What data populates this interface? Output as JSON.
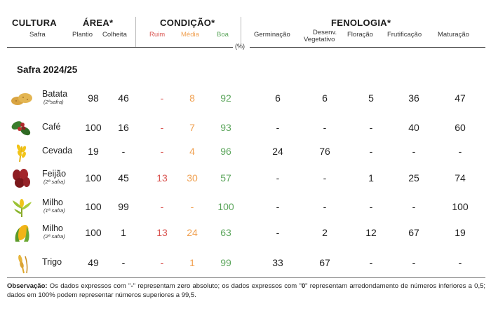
{
  "header": {
    "cultura": "CULTURA",
    "safra": "Safra",
    "area": "ÁREA*",
    "plantio": "Plantio",
    "colheita": "Colheita",
    "condicao": "CONDIÇÃO*",
    "ruim": "Ruim",
    "media": "Média",
    "boa": "Boa",
    "fenologia": "FENOLOGIA*",
    "germinacao": "Germinação",
    "desenv1": "Desenv.",
    "desenv2": "Vegetativo",
    "floracao": "Floração",
    "frutificacao": "Frutificação",
    "maturacao": "Maturação",
    "unit": "(%)"
  },
  "section_title": "Safra 2024/25",
  "colors": {
    "ruim": "#d9534f",
    "media": "#f0a050",
    "boa": "#5ba55b"
  },
  "rows": [
    {
      "name": "Batata",
      "sub": "(2ªsafra)",
      "icon": "potato-icon",
      "plantio": "98",
      "colheita": "46",
      "ruim": "-",
      "media": "8",
      "boa": "92",
      "germ": "6",
      "desenv": "6",
      "flor": "5",
      "frut": "36",
      "mat": "47"
    },
    {
      "name": "Café",
      "sub": "",
      "icon": "coffee-icon",
      "plantio": "100",
      "colheita": "16",
      "ruim": "-",
      "media": "7",
      "boa": "93",
      "germ": "-",
      "desenv": "-",
      "flor": "-",
      "frut": "40",
      "mat": "60"
    },
    {
      "name": "Cevada",
      "sub": "",
      "icon": "barley-icon",
      "plantio": "19",
      "colheita": "-",
      "ruim": "-",
      "media": "4",
      "boa": "96",
      "germ": "24",
      "desenv": "76",
      "flor": "-",
      "frut": "-",
      "mat": "-"
    },
    {
      "name": "Feijão",
      "sub": "(2ª safra)",
      "icon": "bean-icon",
      "plantio": "100",
      "colheita": "45",
      "ruim": "13",
      "media": "30",
      "boa": "57",
      "germ": "-",
      "desenv": "-",
      "flor": "1",
      "frut": "25",
      "mat": "74"
    },
    {
      "name": "Milho",
      "sub": "(1ª safra)",
      "icon": "corn-plant-icon",
      "plantio": "100",
      "colheita": "99",
      "ruim": "-",
      "media": "-",
      "boa": "100",
      "germ": "-",
      "desenv": "-",
      "flor": "-",
      "frut": "-",
      "mat": "100"
    },
    {
      "name": "Milho",
      "sub": "(2ª safra)",
      "icon": "corn-icon",
      "plantio": "100",
      "colheita": "1",
      "ruim": "13",
      "media": "24",
      "boa": "63",
      "germ": "-",
      "desenv": "2",
      "flor": "12",
      "frut": "67",
      "mat": "19"
    },
    {
      "name": "Trigo",
      "sub": "",
      "icon": "wheat-icon",
      "plantio": "49",
      "colheita": "-",
      "ruim": "-",
      "media": "1",
      "boa": "99",
      "germ": "33",
      "desenv": "67",
      "flor": "-",
      "frut": "-",
      "mat": "-"
    }
  ],
  "obs": {
    "label": "Observação:",
    "text1": " Os dados expressos com \"",
    "dash": "-",
    "text2": "\" representam zero absoluto; os dados expressos com \"",
    "zero": "0",
    "text3": "\" representam arredondamento de números inferiores a 0,5; dados em 100% podem representar números superiores a 99,5."
  }
}
